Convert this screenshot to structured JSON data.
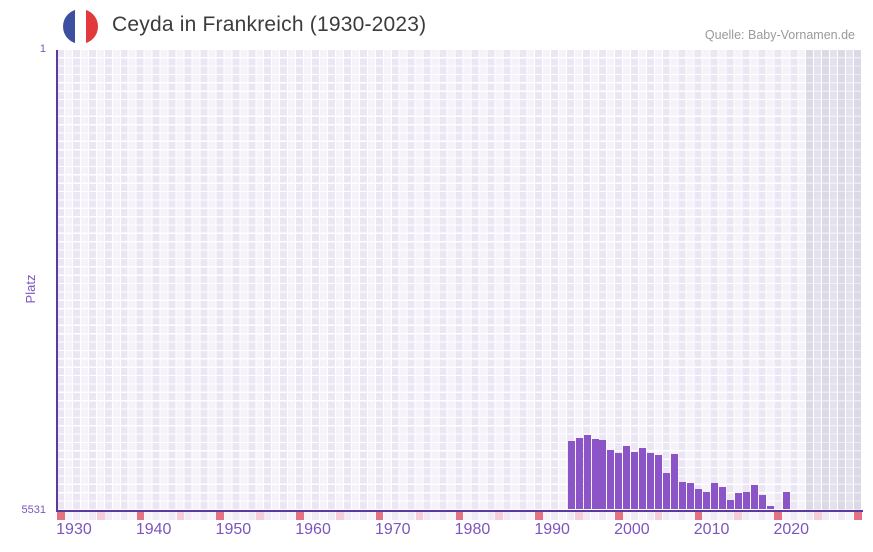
{
  "header": {
    "title": "Ceyda in Frankreich (1930-2023)",
    "source_label": "Quelle: Baby-Vornamen.de"
  },
  "chart_data": {
    "type": "bar",
    "title": "Ceyda in Frankreich (1930-2023)",
    "xlabel": "",
    "ylabel": "Platz",
    "legend": "none",
    "grid": "on",
    "y_axis": {
      "top_label": "1",
      "bottom_label": "5531",
      "min": 1,
      "max": 5531,
      "inverted": true
    },
    "x_axis": {
      "range_start": 1928,
      "range_end": 2028,
      "tick_years": [
        1930,
        1940,
        1950,
        1960,
        1970,
        1980,
        1990,
        2000,
        2010,
        2020
      ]
    },
    "series": [
      {
        "name": "Platz",
        "points": [
          {
            "year": 1992,
            "rank": 4700
          },
          {
            "year": 1993,
            "rank": 4665
          },
          {
            "year": 1994,
            "rank": 4625
          },
          {
            "year": 1995,
            "rank": 4675
          },
          {
            "year": 1996,
            "rank": 4690
          },
          {
            "year": 1997,
            "rank": 4805
          },
          {
            "year": 1998,
            "rank": 4840
          },
          {
            "year": 1999,
            "rank": 4760
          },
          {
            "year": 2000,
            "rank": 4835
          },
          {
            "year": 2001,
            "rank": 4790
          },
          {
            "year": 2002,
            "rank": 4850
          },
          {
            "year": 2003,
            "rank": 4875
          },
          {
            "year": 2004,
            "rank": 5090
          },
          {
            "year": 2005,
            "rank": 4855
          },
          {
            "year": 2006,
            "rank": 5195
          },
          {
            "year": 2007,
            "rank": 5205
          },
          {
            "year": 2008,
            "rank": 5280
          },
          {
            "year": 2009,
            "rank": 5315
          },
          {
            "year": 2010,
            "rank": 5205
          },
          {
            "year": 2011,
            "rank": 5250
          },
          {
            "year": 2012,
            "rank": 5405
          },
          {
            "year": 2013,
            "rank": 5325
          },
          {
            "year": 2014,
            "rank": 5315
          },
          {
            "year": 2015,
            "rank": 5235
          },
          {
            "year": 2016,
            "rank": 5350
          },
          {
            "year": 2017,
            "rank": 5480
          },
          {
            "year": 2019,
            "rank": 5315
          }
        ]
      }
    ],
    "unranked_gap_years": [
      2018
    ],
    "timeline_markers": {
      "interval_years": 5,
      "dark_years": [
        1928,
        1938,
        1948,
        1958,
        1968,
        1978,
        1988,
        1998,
        2008,
        2018,
        2028
      ],
      "light_years": [
        1933,
        1943,
        1953,
        1963,
        1973,
        1983,
        1993,
        2003,
        2013,
        2023
      ]
    },
    "shaded_future_band": {
      "start_year": 2022,
      "end_year": 2028
    },
    "colors": {
      "bar": "#8b55c8",
      "axis_line": "#5b3a9f",
      "axis_label": "#7c55bd",
      "tick_label": "#7c55bd",
      "marker_dark": "#e57283",
      "marker_light": "#f4cdd8",
      "title": "#3c3c3c",
      "source": "#9a9a9a",
      "flag_blue": "#3c4fa1",
      "flag_red": "#e23a3c"
    }
  }
}
